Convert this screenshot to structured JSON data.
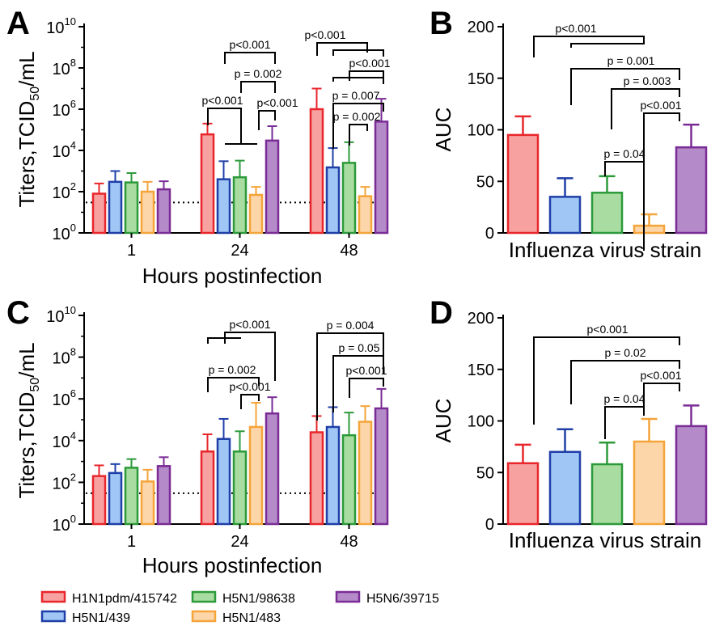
{
  "legend": [
    {
      "name": "H1N1pdm/415742",
      "stroke": "#e8262b",
      "fill": "#f7a1a1"
    },
    {
      "name": "H5N1/439",
      "stroke": "#1f3fa8",
      "fill": "#9fc6f5"
    },
    {
      "name": "H5N1/98638",
      "stroke": "#2c9a3a",
      "fill": "#a9dca0"
    },
    {
      "name": "H5N1/483",
      "stroke": "#f5a43a",
      "fill": "#fcd6a8"
    },
    {
      "name": "H5N6/39715",
      "stroke": "#7a2c96",
      "fill": "#b58ac8"
    }
  ],
  "chart_data": [
    {
      "panel": "A",
      "type": "bar",
      "scale": "log10",
      "ylabel": "Titers,TCID50/mL",
      "xlabel": "Hours postinfection",
      "ylim_exp": [
        0,
        10
      ],
      "ytick_exps": [
        0,
        2,
        4,
        6,
        8,
        10
      ],
      "limit_of_detection": 30,
      "categories": [
        "1",
        "24",
        "48"
      ],
      "series": [
        {
          "name": "H1N1pdm/415742",
          "values": [
            80,
            60000,
            1000000
          ],
          "errors": [
            250,
            200000,
            10000000
          ]
        },
        {
          "name": "H5N1/439",
          "values": [
            300,
            400,
            1500
          ],
          "errors": [
            1000,
            3000,
            13000
          ]
        },
        {
          "name": "H5N1/98638",
          "values": [
            280,
            500,
            2500
          ],
          "errors": [
            800,
            3200,
            25000
          ]
        },
        {
          "name": "H5N1/483",
          "values": [
            100,
            70,
            60
          ],
          "errors": [
            300,
            170,
            170
          ]
        },
        {
          "name": "H5N6/39715",
          "values": [
            130,
            30000,
            250000
          ],
          "errors": [
            320,
            150000,
            3200000
          ]
        }
      ],
      "annotations": [
        "p<0.001",
        "p = 0.002",
        "p<0.001",
        "p<0.001",
        "p<0.001",
        "p<0.001",
        "p = 0.007",
        "p = 0.002"
      ]
    },
    {
      "panel": "B",
      "type": "bar",
      "ylabel": "AUC",
      "xlabel": "Influenza virus strain",
      "ylim": [
        0,
        200
      ],
      "yticks": [
        0,
        50,
        100,
        150,
        200
      ],
      "categories": [
        "H1N1pdm/415742",
        "H5N1/439",
        "H5N1/98638",
        "H5N1/483",
        "H5N6/39715"
      ],
      "values": [
        95,
        35,
        39,
        7,
        83
      ],
      "errors": [
        113,
        53,
        55,
        18,
        105
      ],
      "annotations": [
        "p<0.001",
        "p = 0.001",
        "p = 0.003",
        "p<0.001",
        "p = 0.04"
      ]
    },
    {
      "panel": "C",
      "type": "bar",
      "scale": "log10",
      "ylabel": "Titers,TCID50/mL",
      "xlabel": "Hours postinfection",
      "ylim_exp": [
        0,
        10
      ],
      "ytick_exps": [
        0,
        2,
        4,
        6,
        8,
        10
      ],
      "limit_of_detection": 30,
      "categories": [
        "1",
        "24",
        "48"
      ],
      "series": [
        {
          "name": "H1N1pdm/415742",
          "values": [
            200,
            3000,
            25000
          ],
          "errors": [
            650,
            20000,
            150000
          ]
        },
        {
          "name": "H5N1/439",
          "values": [
            280,
            12000,
            45000
          ],
          "errors": [
            750,
            110000,
            400000
          ]
        },
        {
          "name": "H5N1/98638",
          "values": [
            500,
            3000,
            18000
          ],
          "errors": [
            1300,
            28000,
            220000
          ]
        },
        {
          "name": "H5N1/483",
          "values": [
            110,
            45000,
            80000
          ],
          "errors": [
            400,
            650000,
            450000
          ]
        },
        {
          "name": "H5N6/39715",
          "values": [
            600,
            200000,
            350000
          ],
          "errors": [
            1600,
            1200000,
            3000000
          ]
        }
      ],
      "annotations": [
        "p<0.001",
        "p = 0.002",
        "p<0.001",
        "p = 0.004",
        "p = 0.05",
        "p<0.001"
      ]
    },
    {
      "panel": "D",
      "type": "bar",
      "ylabel": "AUC",
      "xlabel": "Influenza virus strain",
      "ylim": [
        0,
        200
      ],
      "yticks": [
        0,
        50,
        100,
        150,
        200
      ],
      "categories": [
        "H1N1pdm/415742",
        "H5N1/439",
        "H5N1/98638",
        "H5N1/483",
        "H5N6/39715"
      ],
      "values": [
        59,
        70,
        58,
        80,
        95
      ],
      "errors": [
        77,
        92,
        79,
        102,
        115
      ],
      "annotations": [
        "p<0.001",
        "p = 0.02",
        "p<0.001",
        "p = 0.04"
      ]
    }
  ]
}
